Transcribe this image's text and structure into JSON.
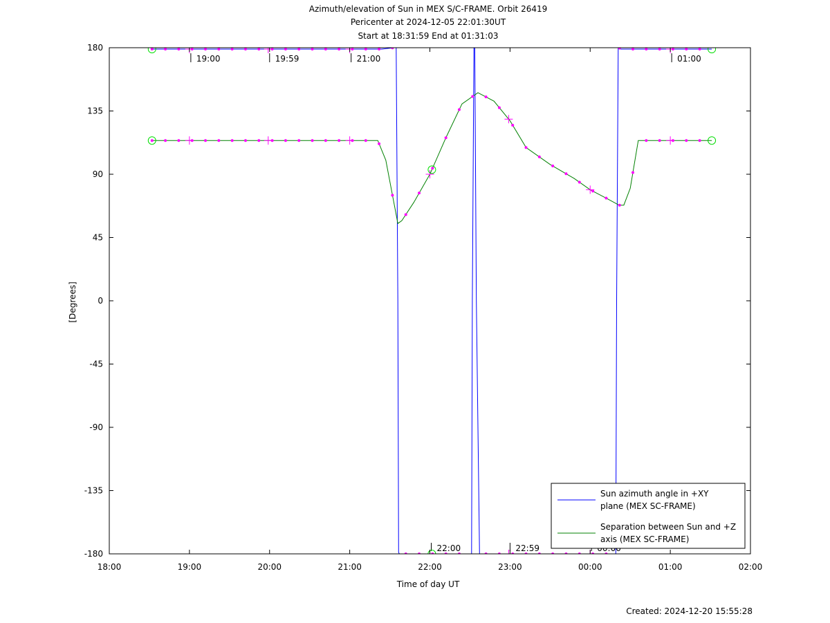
{
  "chart_data": {
    "type": "line",
    "title_lines": [
      "Azimuth/elevation of Sun in MEX S/C-FRAME.  Orbit 26419",
      "Pericenter at 2024-12-05 22:01:30UT",
      "Start at 18:31:59 End at 01:31:03"
    ],
    "xlabel": "Time of day UT",
    "ylabel": "[Degrees]",
    "x_unit": "hours since 18:00 UT",
    "xlim": [
      0,
      8
    ],
    "ylim": [
      -180,
      180
    ],
    "x_tick_labels": [
      "18:00",
      "19:00",
      "20:00",
      "21:00",
      "22:00",
      "23:00",
      "00:00",
      "01:00",
      "02:00"
    ],
    "y_ticks": [
      180,
      135,
      90,
      45,
      0,
      -45,
      -90,
      -135,
      -180
    ],
    "series": [
      {
        "name": "Sun azimuth angle in +XY plane (MEX SC-FRAME)",
        "color": "#0000ff",
        "x": [
          0.5331,
          0.8,
          1.0,
          1.5,
          1.995,
          2.5,
          3.0,
          3.4,
          3.55,
          3.58,
          3.6,
          3.61,
          3.62,
          3.7,
          4.0,
          4.3,
          4.5,
          4.52,
          4.53,
          4.55,
          4.56,
          4.58,
          4.62,
          5.0,
          5.5,
          5.9,
          6.0,
          6.3,
          6.32,
          6.33,
          6.35,
          6.36,
          6.38,
          6.5,
          7.0,
          7.5175
        ],
        "y": [
          179,
          179,
          179,
          179,
          179,
          179,
          179,
          179,
          180,
          180,
          0,
          -179,
          -180,
          -180,
          -180,
          -180,
          -180,
          -180,
          0,
          180,
          180,
          0,
          -180,
          -180,
          -180,
          -180,
          -180,
          -180,
          -180,
          0,
          180,
          180,
          179,
          179,
          179,
          179
        ]
      },
      {
        "name": "Separation between Sun and +Z axis (MEX SC-FRAME)",
        "color": "#008000",
        "x": [
          0.5331,
          1.0,
          1.5,
          2.0,
          2.5,
          3.0,
          3.2,
          3.35,
          3.45,
          3.55,
          3.6,
          3.65,
          3.8,
          4.0,
          4.2,
          4.4,
          4.6,
          4.8,
          5.0,
          5.2,
          5.5,
          5.8,
          6.0,
          6.2,
          6.36,
          6.42,
          6.5,
          6.6,
          7.0,
          7.5175
        ],
        "y": [
          114,
          114,
          114,
          114,
          114,
          114,
          114,
          114,
          100,
          70,
          55,
          57,
          70,
          90,
          116,
          140,
          148,
          142,
          128,
          109,
          97,
          87,
          79,
          73,
          68,
          68,
          80,
          114,
          114,
          114
        ]
      }
    ],
    "time_labels": [
      {
        "text": "19:00",
        "x": 1.0,
        "y": 179
      },
      {
        "text": "19:59",
        "x": 1.983,
        "y": 179
      },
      {
        "text": "21:00",
        "x": 3.0,
        "y": 179
      },
      {
        "text": "22:00",
        "x": 4.0,
        "y": -180
      },
      {
        "text": "22:59",
        "x": 4.983,
        "y": -180
      },
      {
        "text": "00:00",
        "x": 6.0,
        "y": -180
      },
      {
        "text": "01:00",
        "x": 7.0,
        "y": 179
      }
    ],
    "pericenter_x": 4.025,
    "legend_position": "bottom-right",
    "created": "Created: 2024-12-20 15:55:28"
  }
}
